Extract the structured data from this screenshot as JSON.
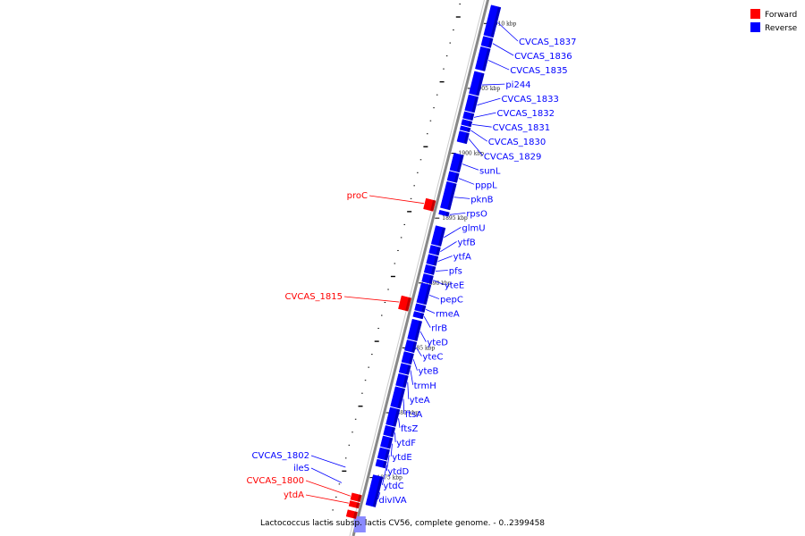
{
  "caption": "Lactococcus lactis subsp. lactis CV56, complete genome. - 0..2399458",
  "legend": [
    {
      "label": "Forward",
      "color": "#ff0000"
    },
    {
      "label": "Reverse",
      "color": "#0000ff"
    }
  ],
  "colors": {
    "forward": "#ff0000",
    "reverse": "#0000ff",
    "backbone": "#888888"
  },
  "ticks": [
    {
      "label": "1910 kbp",
      "kbp": 1910
    },
    {
      "label": "1905 kbp",
      "kbp": 1905
    },
    {
      "label": "1900 kbp",
      "kbp": 1900
    },
    {
      "label": "1895 kbp",
      "kbp": 1895
    },
    {
      "label": "1890 kbp",
      "kbp": 1890
    },
    {
      "label": "1885 kbp",
      "kbp": 1885
    },
    {
      "label": "1880 kbp",
      "kbp": 1880
    },
    {
      "label": "1875 kbp",
      "kbp": 1875
    }
  ],
  "reverse_genes": [
    {
      "name": "CVCAS_1837",
      "start": 1909.2,
      "end": 1911.5
    },
    {
      "name": "CVCAS_1836",
      "start": 1908.4,
      "end": 1909.1
    },
    {
      "name": "CVCAS_1835",
      "start": 1906.6,
      "end": 1908.3
    },
    {
      "name": "pi244",
      "start": 1904.7,
      "end": 1906.4
    },
    {
      "name": "CVCAS_1833",
      "start": 1903.4,
      "end": 1904.6
    },
    {
      "name": "CVCAS_1832",
      "start": 1902.8,
      "end": 1903.3
    },
    {
      "name": "CVCAS_1831",
      "start": 1902.3,
      "end": 1902.7
    },
    {
      "name": "CVCAS_1830",
      "start": 1901.9,
      "end": 1902.2
    },
    {
      "name": "CVCAS_1829",
      "start": 1901.0,
      "end": 1901.8
    },
    {
      "name": "sunL",
      "start": 1898.8,
      "end": 1900.1
    },
    {
      "name": "pppL",
      "start": 1898.0,
      "end": 1898.7
    },
    {
      "name": "pknB",
      "start": 1895.9,
      "end": 1897.9
    },
    {
      "name": "rpsO",
      "start": 1895.4,
      "end": 1895.7
    },
    {
      "name": "glmU",
      "start": 1893.1,
      "end": 1894.5
    },
    {
      "name": "ytfB",
      "start": 1892.4,
      "end": 1893.0
    },
    {
      "name": "ytfA",
      "start": 1891.6,
      "end": 1892.3
    },
    {
      "name": "pfs",
      "start": 1890.9,
      "end": 1891.5
    },
    {
      "name": "yteE",
      "start": 1890.2,
      "end": 1890.8
    },
    {
      "name": "pepC",
      "start": 1888.6,
      "end": 1890.1
    },
    {
      "name": "rmeA",
      "start": 1888.0,
      "end": 1888.5
    },
    {
      "name": "rlrB",
      "start": 1887.5,
      "end": 1887.9
    },
    {
      "name": "yteD",
      "start": 1885.8,
      "end": 1887.3
    },
    {
      "name": "yteC",
      "start": 1884.9,
      "end": 1885.7
    },
    {
      "name": "yteB",
      "start": 1884.0,
      "end": 1884.8
    },
    {
      "name": "trmH",
      "start": 1883.2,
      "end": 1883.9
    },
    {
      "name": "yteA",
      "start": 1882.2,
      "end": 1883.1
    },
    {
      "name": "ftsA",
      "start": 1880.6,
      "end": 1882.1
    },
    {
      "name": "ftsZ",
      "start": 1879.2,
      "end": 1880.5
    },
    {
      "name": "ytdF",
      "start": 1878.4,
      "end": 1879.1
    },
    {
      "name": "ytdE",
      "start": 1877.5,
      "end": 1878.3
    },
    {
      "name": "ytdD",
      "start": 1876.6,
      "end": 1877.4
    },
    {
      "name": "ytdC",
      "start": 1876.0,
      "end": 1876.5
    },
    {
      "name": "divIVA",
      "start": 1873.0,
      "end": 1875.3
    }
  ],
  "forward_genes": [
    {
      "name": "proC",
      "start": 1895.5,
      "end": 1896.3,
      "labeled": true
    },
    {
      "name": "CVCAS_1815",
      "start": 1887.8,
      "end": 1888.8,
      "labeled": true
    },
    {
      "name": "CVCAS_1800",
      "start": 1873.1,
      "end": 1873.6,
      "labeled": true
    },
    {
      "name": "ytdA",
      "start": 1872.6,
      "end": 1873.0,
      "labeled": true
    },
    {
      "name": "",
      "start": 1871.8,
      "end": 1872.3,
      "labeled": false
    }
  ],
  "reverse_labels_left": [
    {
      "name": "CVCAS_1802",
      "kbp": 1875.8
    },
    {
      "name": "ileS",
      "kbp": 1874.6
    }
  ]
}
